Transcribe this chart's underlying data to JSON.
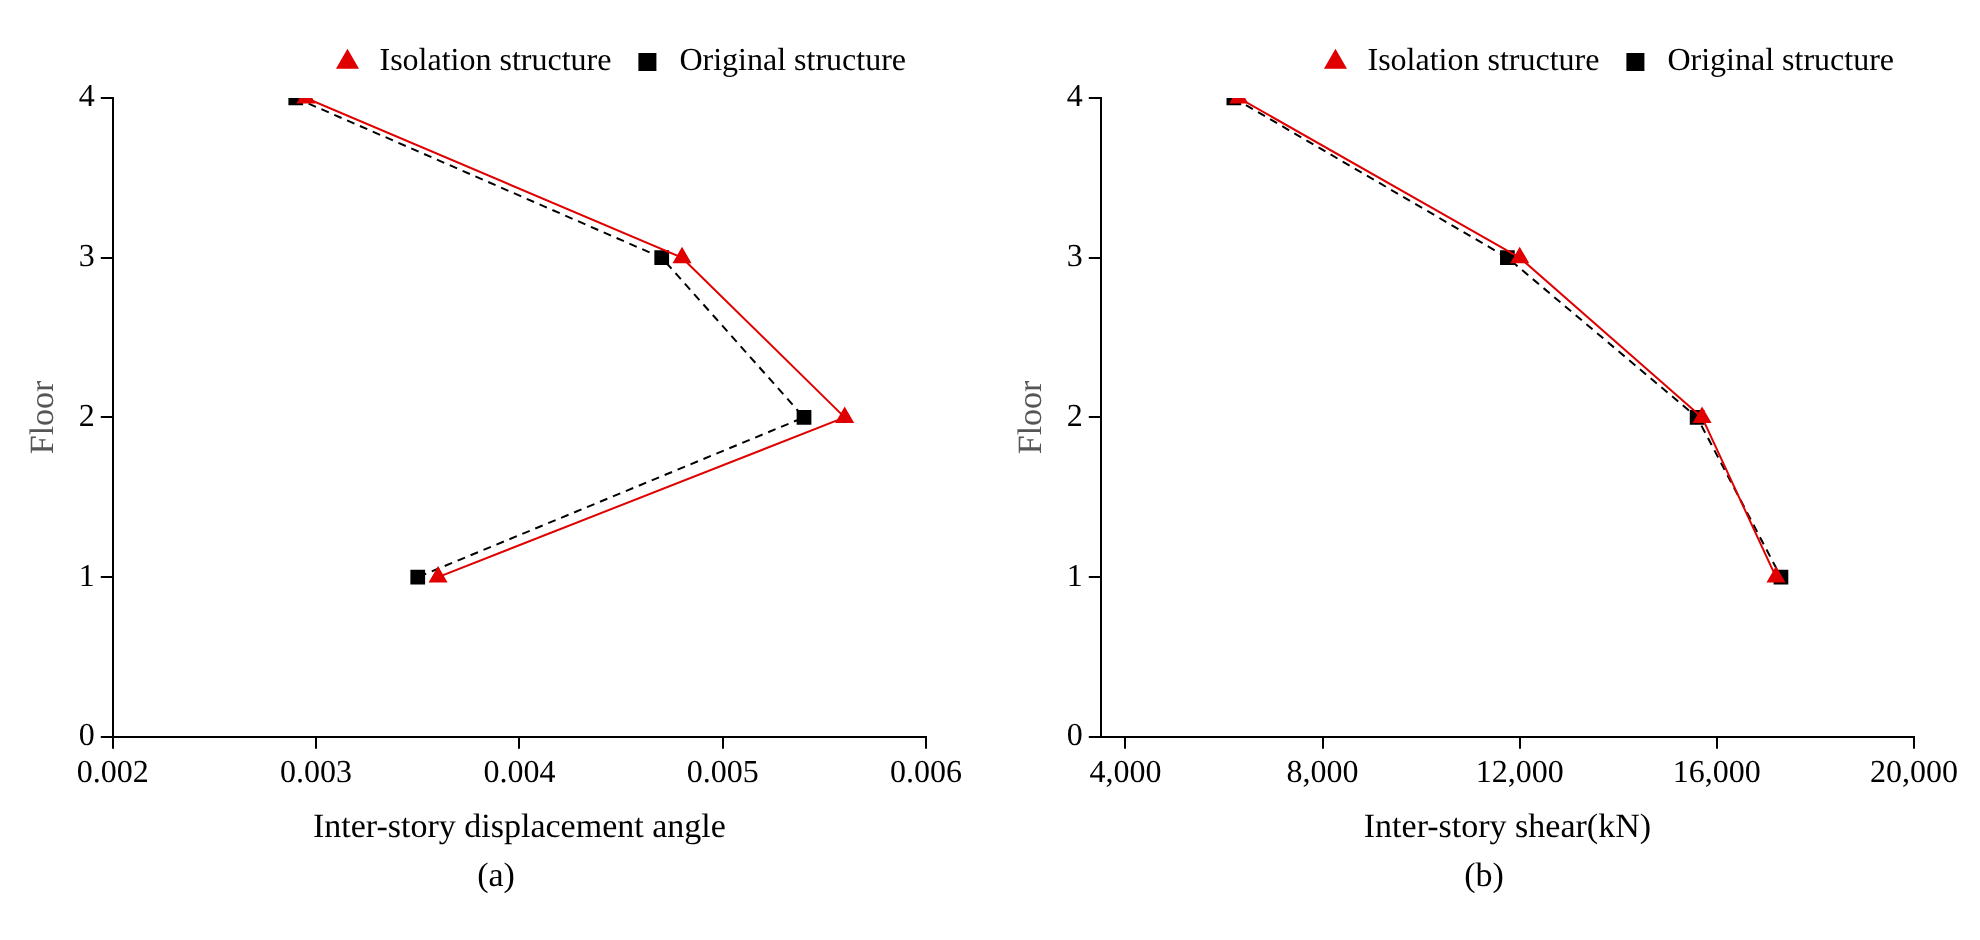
{
  "chart_data": [
    {
      "type": "line",
      "xlabel": "Inter-story displacement angle",
      "ylabel": "Floor",
      "xlim": [
        0.002,
        0.006
      ],
      "xticks": [
        0.002,
        0.003,
        0.004,
        0.005,
        0.006
      ],
      "ylim": [
        0,
        4
      ],
      "yticks": [
        0,
        1,
        2,
        3,
        4
      ],
      "grid": false,
      "legend": "top right",
      "annotations": [
        "(a)"
      ],
      "series": [
        {
          "name": "Original structure",
          "color": "#000000",
          "marker": "square",
          "line_style": "dashed",
          "x": [
            0.0029,
            0.0047,
            0.0054,
            0.0035
          ],
          "values": [
            4,
            3,
            2,
            1
          ]
        },
        {
          "name": "Isolation structure",
          "color": "#e00000",
          "marker": "triangle",
          "line_style": "solid",
          "x": [
            0.00295,
            0.0048,
            0.0056,
            0.0036
          ],
          "values": [
            4,
            3,
            2,
            1
          ]
        }
      ]
    },
    {
      "type": "line",
      "xlabel": "Inter-story shear(kN)",
      "ylabel": "Floor",
      "xlim": [
        3500,
        20000
      ],
      "xticks": [
        {
          "value": 4000,
          "label": "4,000"
        },
        {
          "value": 8000,
          "label": "8,000"
        },
        {
          "value": 12000,
          "label": "12,000"
        },
        {
          "value": 16000,
          "label": "16,000"
        },
        {
          "value": 20000,
          "label": "20,000"
        }
      ],
      "ylim": [
        0,
        4
      ],
      "yticks": [
        0,
        1,
        2,
        3,
        4
      ],
      "grid": false,
      "legend": "top right",
      "annotations": [
        "(b)"
      ],
      "series": [
        {
          "name": "Original structure",
          "color": "#000000",
          "marker": "square",
          "line_style": "dashed",
          "x": [
            6200,
            11750,
            15600,
            17300
          ],
          "values": [
            4,
            3,
            2,
            1
          ]
        },
        {
          "name": "Isolation structure",
          "color": "#e00000",
          "marker": "triangle",
          "line_style": "solid",
          "x": [
            6300,
            12000,
            15700,
            17200
          ],
          "values": [
            4,
            3,
            2,
            1
          ]
        }
      ]
    }
  ]
}
